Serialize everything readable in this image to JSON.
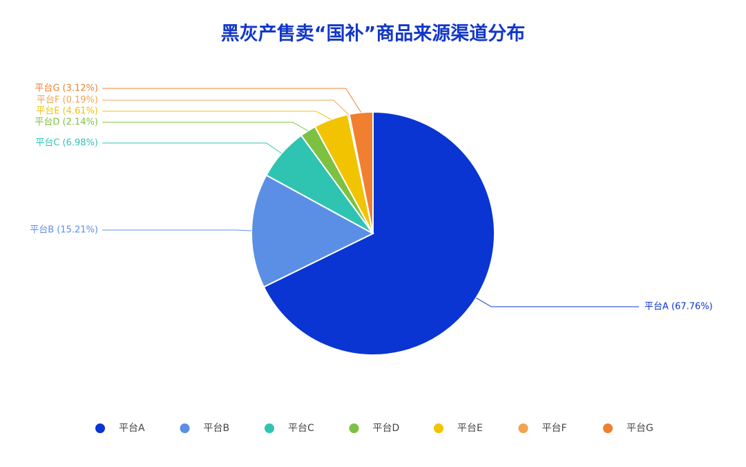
{
  "chart_data": {
    "type": "pie",
    "title": "黑灰产售卖“国补”商品来源渠道分布",
    "categories": [
      "平台A",
      "平台B",
      "平台C",
      "平台D",
      "平台E",
      "平台F",
      "平台G"
    ],
    "values": [
      67.76,
      15.21,
      6.98,
      2.14,
      4.61,
      0.19,
      3.12
    ],
    "value_labels": [
      "平台A (67.76%)",
      "平台B (15.21%)",
      "平台C (6.98%)",
      "平台D (2.14%)",
      "平台E (4.61%)",
      "平台F (0.19%)",
      "平台G (3.12%)"
    ],
    "colors": [
      "#0a35d2",
      "#5b8fe6",
      "#2fc4b2",
      "#7cc142",
      "#f2c300",
      "#f3a24f",
      "#f07f30"
    ],
    "legend": "bottom"
  }
}
